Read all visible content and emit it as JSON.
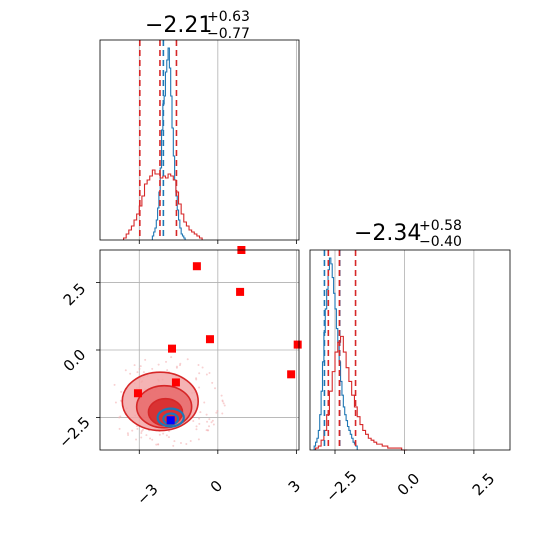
{
  "chart_data": [
    {
      "panel": "marginal-param1",
      "type": "histogram",
      "title": {
        "main": "−2.21",
        "sup": "+0.63",
        "sub": "−0.77"
      },
      "xlim": [
        -4.5,
        3.1
      ],
      "grid": true,
      "series": [
        {
          "name": "",
          "color": "#1f77b4",
          "bin_edges": [
            -2.5,
            -2.45,
            -2.4,
            -2.35,
            -2.3,
            -2.25,
            -2.2,
            -2.15,
            -2.1,
            -2.05,
            -2.0,
            -1.95,
            -1.9,
            -1.85,
            -1.8,
            -1.75,
            -1.7,
            -1.65,
            -1.6,
            -1.55,
            -1.5,
            -1.45,
            -1.4,
            -1.35,
            -1.3,
            -1.25
          ],
          "heights": [
            0.02,
            0.04,
            0.06,
            0.1,
            0.16,
            0.24,
            0.36,
            0.55,
            0.68,
            0.72,
            0.84,
            0.9,
            0.96,
            0.86,
            0.72,
            0.56,
            0.42,
            0.3,
            0.22,
            0.15,
            0.1,
            0.06,
            0.03,
            0.02,
            0.01
          ]
        },
        {
          "name": "",
          "color": "#d62728",
          "bin_edges": [
            -3.6,
            -3.5,
            -3.4,
            -3.3,
            -3.2,
            -3.1,
            -3.0,
            -2.9,
            -2.8,
            -2.7,
            -2.6,
            -2.5,
            -2.4,
            -2.3,
            -2.2,
            -2.1,
            -2.0,
            -1.9,
            -1.8,
            -1.7,
            -1.6,
            -1.5,
            -1.4,
            -1.3,
            -1.2,
            -1.1,
            -1.0,
            -0.9,
            -0.8,
            -0.7,
            -0.6
          ],
          "heights": [
            0.01,
            0.03,
            0.05,
            0.07,
            0.1,
            0.13,
            0.17,
            0.22,
            0.28,
            0.3,
            0.32,
            0.35,
            0.33,
            0.33,
            0.31,
            0.32,
            0.31,
            0.33,
            0.32,
            0.3,
            0.24,
            0.18,
            0.13,
            0.09,
            0.07,
            0.05,
            0.04,
            0.03,
            0.02,
            0.01
          ]
        }
      ],
      "quantile_lines": [
        {
          "color": "#1f77b4",
          "values": [
            -2.08
          ]
        },
        {
          "color": "#d62728",
          "values": [
            -2.98,
            -2.21,
            -1.58
          ]
        }
      ]
    },
    {
      "panel": "marginal-param2",
      "type": "histogram",
      "title": {
        "main": "−2.34",
        "sup": "+0.58",
        "sub": "−0.40"
      },
      "xlim": [
        -3.4,
        3.8
      ],
      "tick_labels": [
        "−2.5",
        "0.0",
        "2.5"
      ],
      "grid": true,
      "series": [
        {
          "name": "",
          "color": "#1f77b4",
          "bin_edges": [
            -3.25,
            -3.2,
            -3.15,
            -3.1,
            -3.05,
            -3.0,
            -2.95,
            -2.9,
            -2.85,
            -2.8,
            -2.75,
            -2.7,
            -2.65,
            -2.6,
            -2.55,
            -2.5,
            -2.45,
            -2.4,
            -2.35,
            -2.3,
            -2.25,
            -2.2,
            -2.15,
            -2.1,
            -2.05,
            -2.0,
            -1.95,
            -1.9,
            -1.85,
            -1.8,
            -1.75,
            -1.7
          ],
          "heights": [
            0.02,
            0.04,
            0.06,
            0.1,
            0.18,
            0.3,
            0.45,
            0.6,
            0.72,
            0.82,
            0.92,
            0.98,
            0.95,
            0.88,
            0.8,
            0.72,
            0.62,
            0.55,
            0.45,
            0.35,
            0.28,
            0.22,
            0.18,
            0.15,
            0.12,
            0.1,
            0.08,
            0.06,
            0.04,
            0.03,
            0.02
          ]
        },
        {
          "name": "",
          "color": "#d62728",
          "bin_edges": [
            -3.2,
            -3.1,
            -3.0,
            -2.9,
            -2.8,
            -2.7,
            -2.6,
            -2.5,
            -2.4,
            -2.3,
            -2.2,
            -2.1,
            -2.0,
            -1.9,
            -1.8,
            -1.7,
            -1.6,
            -1.5,
            -1.4,
            -1.3,
            -1.2,
            -1.1,
            -1.0,
            -0.9,
            -0.8,
            -0.7,
            -0.6,
            -0.5,
            -0.4,
            -0.3,
            -0.2,
            -0.1,
            0.0,
            0.1
          ],
          "heights": [
            0.01,
            0.02,
            0.05,
            0.1,
            0.18,
            0.3,
            0.4,
            0.5,
            0.55,
            0.58,
            0.5,
            0.42,
            0.35,
            0.28,
            0.22,
            0.17,
            0.13,
            0.1,
            0.08,
            0.06,
            0.05,
            0.04,
            0.03,
            0.03,
            0.02,
            0.02,
            0.01,
            0.01,
            0.01,
            0.01,
            0.01,
            0.0,
            0.0
          ]
        }
      ],
      "quantile_lines": [
        {
          "color": "#1f77b4",
          "values": [
            -2.88,
            -2.33
          ]
        },
        {
          "color": "#d62728",
          "values": [
            -2.74,
            -2.34,
            -1.76
          ]
        }
      ]
    },
    {
      "panel": "joint",
      "type": "scatter",
      "xlim": [
        -4.5,
        3.1
      ],
      "ylim": [
        -3.7,
        3.7
      ],
      "x_tick_labels": [
        "−3",
        "0",
        "3"
      ],
      "y_tick_labels": [
        "−2.5",
        "0.0",
        "2.5"
      ],
      "grid": true,
      "contours_red": [
        {
          "cx": -2.2,
          "cy": -1.9,
          "rx": 1.45,
          "ry": 1.08,
          "level": "outer"
        },
        {
          "cx": -2.05,
          "cy": -2.1,
          "rx": 1.05,
          "ry": 0.78,
          "level": "middle"
        },
        {
          "cx": -2.0,
          "cy": -2.3,
          "rx": 0.65,
          "ry": 0.5,
          "level": "inner"
        }
      ],
      "contours_blue": [
        {
          "cx": -1.8,
          "cy": -2.5,
          "rx": 0.5,
          "ry": 0.33
        },
        {
          "cx": -1.8,
          "cy": -2.55,
          "rx": 0.28,
          "ry": 0.2
        }
      ],
      "red_markers": [
        {
          "x": -0.8,
          "y": 3.1
        },
        {
          "x": 0.9,
          "y": 3.7
        },
        {
          "x": 0.85,
          "y": 2.15
        },
        {
          "x": -0.3,
          "y": 0.4
        },
        {
          "x": -1.75,
          "y": 0.05
        },
        {
          "x": 2.8,
          "y": -0.9
        },
        {
          "x": 3.05,
          "y": 0.2
        },
        {
          "x": -1.6,
          "y": -1.2
        },
        {
          "x": -3.05,
          "y": -1.6
        },
        {
          "x": -1.8,
          "y": -2.6
        }
      ],
      "blue_markers": [
        {
          "x": -1.8,
          "y": -2.6
        }
      ],
      "colors": {
        "red": "#d62728",
        "blue": "#1f77b4",
        "marker_red": "#ff0000",
        "marker_blue": "#0000ff"
      }
    }
  ]
}
